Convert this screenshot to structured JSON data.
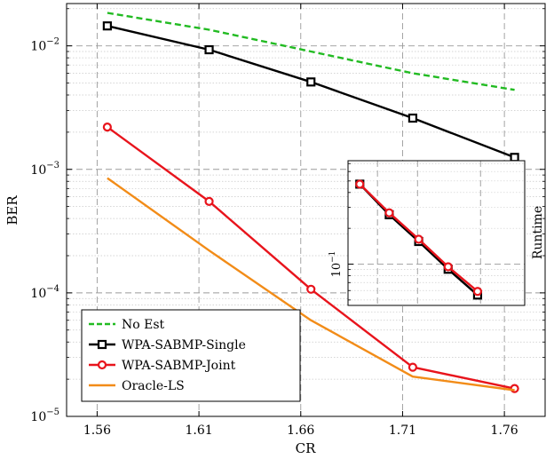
{
  "chart_data": [
    {
      "type": "line",
      "xlabel": "CR",
      "ylabel": "BER",
      "yscale": "log",
      "xlim": [
        1.545,
        1.78
      ],
      "ylim": [
        1e-05,
        0.022
      ],
      "xticks": [
        1.56,
        1.61,
        1.66,
        1.71,
        1.76
      ],
      "xtick_labels": [
        "1.56",
        "1.61",
        "1.66",
        "1.71",
        "1.76"
      ],
      "yticks": [
        1e-05,
        0.0001,
        0.001,
        0.01
      ],
      "ytick_mantissa": "10",
      "ytick_exponents": [
        "−5",
        "−4",
        "−3",
        "−2"
      ],
      "grid": true,
      "legend_position": "bottom-left",
      "series": [
        {
          "name": "No Est",
          "color": "#22bb22",
          "dash": "dashed",
          "marker": "none",
          "x": [
            1.565,
            1.615,
            1.665,
            1.715,
            1.765
          ],
          "y": [
            0.0185,
            0.0135,
            0.009,
            0.006,
            0.0044
          ]
        },
        {
          "name": "WPA-SABMP-Single",
          "color": "#000000",
          "dash": "solid",
          "marker": "square",
          "x": [
            1.565,
            1.615,
            1.665,
            1.715,
            1.765
          ],
          "y": [
            0.0145,
            0.0093,
            0.0051,
            0.0026,
            0.00125
          ]
        },
        {
          "name": "WPA-SABMP-Joint",
          "color": "#e8141c",
          "dash": "solid",
          "marker": "circle",
          "x": [
            1.565,
            1.615,
            1.665,
            1.715,
            1.765
          ],
          "y": [
            0.0022,
            0.00055,
            0.000107,
            2.5e-05,
            1.68e-05
          ]
        },
        {
          "name": "Oracle-LS",
          "color": "#f28c18",
          "dash": "solid",
          "marker": "none",
          "x": [
            1.565,
            1.615,
            1.665,
            1.715,
            1.765
          ],
          "y": [
            0.00085,
            0.00022,
            6e-05,
            2.1e-05,
            1.63e-05
          ]
        }
      ]
    },
    {
      "type": "line",
      "inset": true,
      "ylabel": "Runtime",
      "yscale": "log",
      "xlim": [
        0,
        6
      ],
      "ylim": [
        0.045,
        0.74
      ],
      "yticks": [
        0.1
      ],
      "ytick_mantissa": "10",
      "ytick_exponents": [
        "−1"
      ],
      "grid": true,
      "series": [
        {
          "color": "#000000",
          "marker": "square",
          "x": [
            0.4,
            1.4,
            2.4,
            3.4,
            4.4
          ],
          "y": [
            0.47,
            0.26,
            0.155,
            0.0906,
            0.055
          ]
        },
        {
          "color": "#e8141c",
          "marker": "circle",
          "x": [
            0.4,
            1.4,
            2.4,
            3.4,
            4.4
          ],
          "y": [
            0.47,
            0.27,
            0.162,
            0.095,
            0.059
          ]
        }
      ]
    }
  ]
}
